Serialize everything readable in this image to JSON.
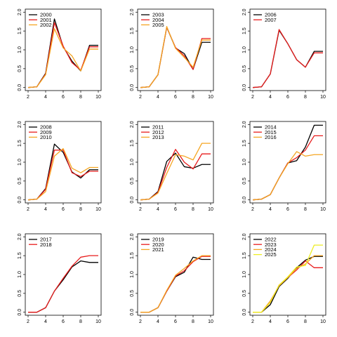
{
  "chart_data": [
    {
      "type": "line",
      "xlim": [
        2,
        10
      ],
      "ylim": [
        0,
        2
      ],
      "x_ticks": [
        "2",
        "4",
        "6",
        "8",
        "10"
      ],
      "y_ticks": [
        "0.0",
        "0.5",
        "1.0",
        "1.5",
        "2.0"
      ],
      "legend_position": "top-left",
      "series": [
        {
          "name": "2000",
          "color": "#000000",
          "x": [
            2,
            3,
            4,
            5,
            6,
            7,
            8,
            9,
            10
          ],
          "values": [
            0.0,
            0.02,
            0.38,
            1.82,
            1.08,
            0.7,
            0.44,
            1.12,
            1.12
          ]
        },
        {
          "name": "2001",
          "color": "#e81c1c",
          "x": [
            2,
            3,
            4,
            5,
            6,
            7,
            8,
            9,
            10
          ],
          "values": [
            0.0,
            0.02,
            0.36,
            1.72,
            1.1,
            0.66,
            0.46,
            1.08,
            1.08
          ]
        },
        {
          "name": "2002",
          "color": "#f5a623",
          "x": [
            2,
            3,
            4,
            5,
            6,
            7,
            8,
            9,
            10
          ],
          "values": [
            0.0,
            0.02,
            0.34,
            1.56,
            1.05,
            0.84,
            0.44,
            1.02,
            1.02
          ]
        }
      ]
    },
    {
      "type": "line",
      "xlim": [
        2,
        10
      ],
      "ylim": [
        0,
        2
      ],
      "x_ticks": [
        "2",
        "4",
        "6",
        "8",
        "10"
      ],
      "y_ticks": [
        "0.0",
        "0.5",
        "1.0",
        "1.5",
        "2.0"
      ],
      "legend_position": "top-left",
      "series": [
        {
          "name": "2003",
          "color": "#000000",
          "x": [
            2,
            3,
            4,
            5,
            6,
            7,
            8,
            9,
            10
          ],
          "values": [
            0.0,
            0.02,
            0.34,
            1.6,
            1.05,
            0.9,
            0.48,
            1.2,
            1.2
          ]
        },
        {
          "name": "2004",
          "color": "#e81c1c",
          "x": [
            2,
            3,
            4,
            5,
            6,
            7,
            8,
            9,
            10
          ],
          "values": [
            0.0,
            0.02,
            0.34,
            1.6,
            1.06,
            0.84,
            0.48,
            1.3,
            1.3
          ]
        },
        {
          "name": "2005",
          "color": "#f5a623",
          "x": [
            2,
            3,
            4,
            5,
            6,
            7,
            8,
            9,
            10
          ],
          "values": [
            0.0,
            0.02,
            0.34,
            1.62,
            1.04,
            0.8,
            0.54,
            1.26,
            1.26
          ]
        }
      ]
    },
    {
      "type": "line",
      "xlim": [
        2,
        10
      ],
      "ylim": [
        0,
        2
      ],
      "x_ticks": [
        "2",
        "4",
        "6",
        "8",
        "10"
      ],
      "y_ticks": [
        "0.0",
        "0.5",
        "1.0",
        "1.5",
        "2.0"
      ],
      "legend_position": "top-left",
      "series": [
        {
          "name": "2006",
          "color": "#000000",
          "x": [
            2,
            3,
            4,
            5,
            6,
            7,
            8,
            9,
            10
          ],
          "values": [
            0.0,
            0.02,
            0.36,
            1.52,
            1.16,
            0.74,
            0.54,
            0.96,
            0.96
          ]
        },
        {
          "name": "2007",
          "color": "#e81c1c",
          "x": [
            2,
            3,
            4,
            5,
            6,
            7,
            8,
            9,
            10
          ],
          "values": [
            0.0,
            0.02,
            0.36,
            1.54,
            1.16,
            0.74,
            0.54,
            0.92,
            0.92
          ]
        }
      ]
    },
    {
      "type": "line",
      "xlim": [
        2,
        10
      ],
      "ylim": [
        0,
        2
      ],
      "x_ticks": [
        "2",
        "4",
        "6",
        "8",
        "10"
      ],
      "y_ticks": [
        "0.0",
        "0.5",
        "1.0",
        "1.5",
        "2.0"
      ],
      "legend_position": "top-left",
      "series": [
        {
          "name": "2008",
          "color": "#000000",
          "x": [
            2,
            3,
            4,
            5,
            6,
            7,
            8,
            9,
            10
          ],
          "values": [
            0.0,
            0.02,
            0.3,
            1.48,
            1.26,
            0.74,
            0.58,
            0.8,
            0.8
          ]
        },
        {
          "name": "2009",
          "color": "#e81c1c",
          "x": [
            2,
            3,
            4,
            5,
            6,
            7,
            8,
            9,
            10
          ],
          "values": [
            0.0,
            0.02,
            0.28,
            1.32,
            1.32,
            0.72,
            0.62,
            0.76,
            0.76
          ]
        },
        {
          "name": "2010",
          "color": "#f5a623",
          "x": [
            2,
            3,
            4,
            5,
            6,
            7,
            8,
            9,
            10
          ],
          "values": [
            0.0,
            0.02,
            0.22,
            1.16,
            1.36,
            0.84,
            0.72,
            0.86,
            0.86
          ]
        }
      ]
    },
    {
      "type": "line",
      "xlim": [
        2,
        10
      ],
      "ylim": [
        0,
        2
      ],
      "x_ticks": [
        "2",
        "4",
        "6",
        "8",
        "10"
      ],
      "y_ticks": [
        "0.0",
        "0.5",
        "1.0",
        "1.5",
        "2.0"
      ],
      "legend_position": "top-left",
      "series": [
        {
          "name": "2011",
          "color": "#000000",
          "x": [
            2,
            3,
            4,
            5,
            6,
            7,
            8,
            9,
            10
          ],
          "values": [
            0.0,
            0.02,
            0.22,
            1.02,
            1.24,
            0.88,
            0.84,
            0.94,
            0.94
          ]
        },
        {
          "name": "2012",
          "color": "#e81c1c",
          "x": [
            2,
            3,
            4,
            5,
            6,
            7,
            8,
            9,
            10
          ],
          "values": [
            0.0,
            0.02,
            0.2,
            0.86,
            1.34,
            1.0,
            0.82,
            1.22,
            1.22
          ]
        },
        {
          "name": "2013",
          "color": "#f5a623",
          "x": [
            2,
            3,
            4,
            5,
            6,
            7,
            8,
            9,
            10
          ],
          "values": [
            0.0,
            0.02,
            0.18,
            0.7,
            1.2,
            1.16,
            1.06,
            1.5,
            1.5
          ]
        }
      ]
    },
    {
      "type": "line",
      "xlim": [
        2,
        10
      ],
      "ylim": [
        0,
        2
      ],
      "x_ticks": [
        "2",
        "4",
        "6",
        "8",
        "10"
      ],
      "y_ticks": [
        "0.0",
        "0.5",
        "1.0",
        "1.5",
        "2.0"
      ],
      "legend_position": "top-left",
      "series": [
        {
          "name": "2014",
          "color": "#000000",
          "x": [
            2,
            3,
            4,
            5,
            6,
            7,
            8,
            9,
            10
          ],
          "values": [
            0.0,
            0.02,
            0.14,
            0.58,
            0.98,
            1.04,
            1.4,
            1.98,
            1.98
          ]
        },
        {
          "name": "2015",
          "color": "#e81c1c",
          "x": [
            2,
            3,
            4,
            5,
            6,
            7,
            8,
            9,
            10
          ],
          "values": [
            0.0,
            0.02,
            0.14,
            0.58,
            0.98,
            1.12,
            1.32,
            1.7,
            1.7
          ]
        },
        {
          "name": "2016",
          "color": "#f5a623",
          "x": [
            2,
            3,
            4,
            5,
            6,
            7,
            8,
            9,
            10
          ],
          "values": [
            0.0,
            0.02,
            0.14,
            0.58,
            0.96,
            1.28,
            1.16,
            1.2,
            1.2
          ]
        }
      ]
    },
    {
      "type": "line",
      "xlim": [
        2,
        10
      ],
      "ylim": [
        0,
        2
      ],
      "x_ticks": [
        "2",
        "4",
        "6",
        "8",
        "10"
      ],
      "y_ticks": [
        "0.0",
        "0.5",
        "1.0",
        "1.5",
        "2.0"
      ],
      "legend_position": "top-left",
      "series": [
        {
          "name": "2017",
          "color": "#000000",
          "x": [
            2,
            3,
            4,
            5,
            6,
            7,
            8,
            9,
            10
          ],
          "values": [
            0.0,
            0.0,
            0.12,
            0.56,
            0.86,
            1.2,
            1.36,
            1.32,
            1.32
          ]
        },
        {
          "name": "2018",
          "color": "#e81c1c",
          "x": [
            2,
            3,
            4,
            5,
            6,
            7,
            8,
            9,
            10
          ],
          "values": [
            0.0,
            0.0,
            0.12,
            0.56,
            0.9,
            1.22,
            1.46,
            1.5,
            1.5
          ]
        }
      ]
    },
    {
      "type": "line",
      "xlim": [
        2,
        10
      ],
      "ylim": [
        0,
        2
      ],
      "x_ticks": [
        "2",
        "4",
        "6",
        "8",
        "10"
      ],
      "y_ticks": [
        "0.0",
        "0.5",
        "1.0",
        "1.5",
        "2.0"
      ],
      "legend_position": "top-left",
      "series": [
        {
          "name": "2019",
          "color": "#000000",
          "x": [
            2,
            3,
            4,
            5,
            6,
            7,
            8,
            9,
            10
          ],
          "values": [
            0.0,
            0.0,
            0.12,
            0.56,
            0.94,
            1.06,
            1.46,
            1.4,
            1.4
          ]
        },
        {
          "name": "2020",
          "color": "#e81c1c",
          "x": [
            2,
            3,
            4,
            5,
            6,
            7,
            8,
            9,
            10
          ],
          "values": [
            0.0,
            0.0,
            0.12,
            0.56,
            0.96,
            1.1,
            1.34,
            1.48,
            1.48
          ]
        },
        {
          "name": "2021",
          "color": "#f5a623",
          "x": [
            2,
            3,
            4,
            5,
            6,
            7,
            8,
            9,
            10
          ],
          "values": [
            0.0,
            0.0,
            0.12,
            0.58,
            0.98,
            1.16,
            1.36,
            1.5,
            1.5
          ]
        }
      ]
    },
    {
      "type": "line",
      "xlim": [
        2,
        10
      ],
      "ylim": [
        0,
        2
      ],
      "x_ticks": [
        "2",
        "4",
        "6",
        "8",
        "10"
      ],
      "y_ticks": [
        "0.0",
        "0.5",
        "1.0",
        "1.5",
        "2.0"
      ],
      "legend_position": "top-left",
      "series": [
        {
          "name": "2022",
          "color": "#000000",
          "x": [
            2,
            3,
            4,
            5,
            6,
            7,
            8,
            9,
            10
          ],
          "values": [
            0.0,
            0.0,
            0.2,
            0.68,
            0.9,
            1.18,
            1.38,
            1.48,
            1.48
          ]
        },
        {
          "name": "2023",
          "color": "#e81c1c",
          "x": [
            2,
            3,
            4,
            5,
            6,
            7,
            8,
            9,
            10
          ],
          "values": [
            0.0,
            0.0,
            0.26,
            0.72,
            0.92,
            1.12,
            1.36,
            1.18,
            1.18
          ]
        },
        {
          "name": "2024",
          "color": "#f5a623",
          "x": [
            2,
            3,
            4,
            5,
            6,
            7,
            8,
            9,
            10
          ],
          "values": [
            0.0,
            0.0,
            0.3,
            0.7,
            0.92,
            1.16,
            1.28,
            1.5,
            1.5
          ]
        },
        {
          "name": "2025",
          "color": "#eeee22",
          "x": [
            2,
            3,
            4,
            5,
            6,
            7,
            8,
            9,
            10
          ],
          "values": [
            0.0,
            0.0,
            0.26,
            0.72,
            0.94,
            1.2,
            1.24,
            1.78,
            1.78
          ]
        }
      ]
    }
  ]
}
